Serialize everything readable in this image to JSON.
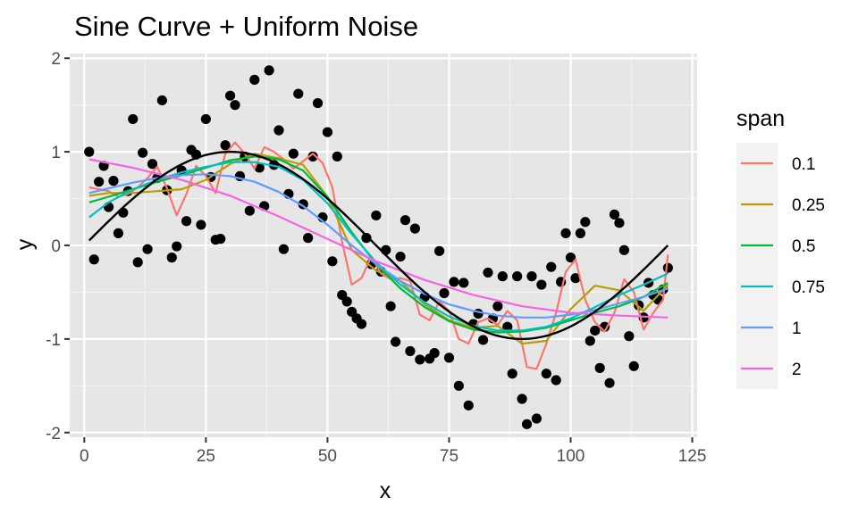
{
  "chart_data": {
    "type": "scatter",
    "title": "Sine Curve + Uniform Noise",
    "xlabel": "x",
    "ylabel": "y",
    "xlim": [
      -3,
      126
    ],
    "ylim": [
      -2.05,
      2.05
    ],
    "x_ticks": [
      0,
      25,
      50,
      75,
      100,
      125
    ],
    "y_ticks": [
      -2,
      -1,
      0,
      1,
      2
    ],
    "grid": true,
    "panel_background": "#e6e6e6",
    "legend": {
      "title": "span",
      "placement": "right",
      "entries": [
        "0.1",
        "0.25",
        "0.5",
        "0.75",
        "1",
        "2"
      ]
    },
    "points": {
      "color": "#000000",
      "x": [
        1,
        2,
        3,
        4,
        5,
        6,
        7,
        8,
        9,
        10,
        11,
        12,
        13,
        14,
        15,
        16,
        17,
        18,
        19,
        20,
        21,
        22,
        23,
        24,
        25,
        26,
        27,
        28,
        29,
        30,
        31,
        32,
        33,
        34,
        35,
        36,
        37,
        38,
        39,
        40,
        41,
        42,
        43,
        44,
        45,
        46,
        47,
        48,
        49,
        50,
        51,
        52,
        53,
        54,
        55,
        56,
        57,
        58,
        59,
        60,
        61,
        62,
        63,
        64,
        65,
        66,
        67,
        68,
        69,
        70,
        71,
        72,
        73,
        74,
        75,
        76,
        77,
        78,
        79,
        80,
        81,
        82,
        83,
        84,
        85,
        86,
        87,
        88,
        89,
        90,
        91,
        92,
        93,
        94,
        95,
        96,
        97,
        98,
        99,
        100,
        101,
        102,
        103,
        104,
        105,
        106,
        107,
        108,
        109,
        110,
        111,
        112,
        113,
        114,
        115,
        116,
        117,
        118,
        119,
        120
      ],
      "y": [
        1.0,
        -0.15,
        0.68,
        0.85,
        0.41,
        0.69,
        0.13,
        0.35,
        0.58,
        1.35,
        -0.18,
        0.99,
        -0.04,
        0.87,
        0.72,
        1.55,
        0.59,
        -0.13,
        -0.01,
        0.8,
        0.26,
        1.02,
        0.97,
        0.22,
        1.35,
        0.73,
        0.06,
        0.07,
        1.07,
        1.6,
        1.5,
        0.74,
        0.95,
        0.37,
        1.77,
        0.83,
        0.42,
        1.87,
        0.86,
        1.23,
        -0.04,
        0.55,
        0.98,
        1.62,
        0.44,
        0.08,
        0.95,
        1.52,
        0.3,
        1.21,
        -0.17,
        0.95,
        -0.53,
        -0.6,
        -0.71,
        -0.78,
        -0.84,
        0.08,
        -0.2,
        0.32,
        -0.28,
        -0.05,
        -0.65,
        -1.03,
        -0.12,
        0.27,
        -1.13,
        0.18,
        -1.22,
        -0.55,
        -1.21,
        -1.15,
        -0.06,
        -0.51,
        -1.2,
        -0.39,
        -1.5,
        -0.4,
        -1.71,
        -0.84,
        -0.73,
        -1.01,
        -0.29,
        -0.78,
        -0.65,
        -0.33,
        -0.87,
        -1.37,
        -0.33,
        -1.64,
        -1.91,
        -0.33,
        -1.85,
        -0.42,
        -1.37,
        -0.23,
        -1.44,
        -0.39,
        0.13,
        -0.13,
        -0.35,
        0.13,
        0.25,
        -1.02,
        -0.91,
        -1.31,
        -0.87,
        -1.47,
        0.33,
        0.24,
        -0.05,
        -0.97,
        -1.29,
        -0.64,
        -0.77,
        -0.4,
        -0.53,
        -0.58,
        -0.47,
        -0.24
      ]
    },
    "series": [
      {
        "name": "0.1",
        "color": "#F8766D",
        "x": [
          1,
          3,
          5,
          7,
          9,
          11,
          13,
          15,
          17,
          19,
          21,
          23,
          25,
          27,
          29,
          31,
          33,
          35,
          37,
          39,
          41,
          43,
          45,
          47,
          49,
          51,
          53,
          55,
          57,
          59,
          61,
          63,
          65,
          67,
          69,
          71,
          73,
          75,
          77,
          79,
          81,
          83,
          85,
          87,
          89,
          91,
          93,
          95,
          97,
          99,
          101,
          103,
          105,
          107,
          109,
          111,
          113,
          115,
          117,
          119,
          120
        ],
        "y": [
          0.62,
          0.6,
          0.58,
          0.52,
          0.55,
          0.62,
          0.72,
          0.84,
          0.61,
          0.32,
          0.55,
          0.85,
          0.74,
          0.56,
          0.98,
          1.1,
          0.98,
          0.82,
          1.05,
          1.0,
          0.92,
          0.82,
          0.9,
          0.98,
          0.88,
          0.62,
          0.04,
          -0.42,
          -0.35,
          -0.12,
          -0.3,
          -0.36,
          -0.35,
          -0.38,
          -0.74,
          -0.8,
          -0.6,
          -0.7,
          -1.0,
          -1.05,
          -0.82,
          -0.78,
          -0.85,
          -0.7,
          -0.8,
          -1.3,
          -1.32,
          -1.05,
          -0.72,
          -0.28,
          -0.15,
          -0.58,
          -0.82,
          -0.92,
          -0.72,
          -0.36,
          -0.5,
          -0.9,
          -0.72,
          -0.58,
          -0.1
        ]
      },
      {
        "name": "0.25",
        "color": "#B79F00",
        "x": [
          1,
          5,
          10,
          15,
          20,
          25,
          30,
          35,
          40,
          45,
          50,
          55,
          60,
          65,
          70,
          75,
          80,
          85,
          90,
          95,
          100,
          105,
          110,
          115,
          120
        ],
        "y": [
          0.53,
          0.56,
          0.56,
          0.58,
          0.6,
          0.7,
          0.87,
          0.98,
          0.93,
          0.86,
          0.52,
          -0.05,
          -0.27,
          -0.38,
          -0.63,
          -0.8,
          -0.88,
          -0.86,
          -1.05,
          -1.02,
          -0.68,
          -0.43,
          -0.48,
          -0.7,
          -0.42
        ]
      },
      {
        "name": "0.5",
        "color": "#00BA38",
        "x": [
          1,
          5,
          10,
          15,
          20,
          25,
          30,
          35,
          40,
          45,
          50,
          55,
          60,
          65,
          70,
          75,
          80,
          85,
          90,
          95,
          100,
          105,
          110,
          115,
          120
        ],
        "y": [
          0.46,
          0.52,
          0.6,
          0.68,
          0.75,
          0.83,
          0.91,
          0.95,
          0.92,
          0.8,
          0.52,
          0.14,
          -0.2,
          -0.46,
          -0.66,
          -0.81,
          -0.9,
          -0.93,
          -0.92,
          -0.88,
          -0.8,
          -0.72,
          -0.65,
          -0.55,
          -0.4
        ]
      },
      {
        "name": "0.75",
        "color": "#00BFC4",
        "x": [
          1,
          5,
          10,
          15,
          20,
          25,
          30,
          35,
          40,
          45,
          50,
          55,
          60,
          65,
          70,
          75,
          80,
          85,
          90,
          95,
          100,
          105,
          110,
          115,
          120
        ],
        "y": [
          0.3,
          0.46,
          0.6,
          0.7,
          0.78,
          0.84,
          0.89,
          0.89,
          0.84,
          0.7,
          0.45,
          0.12,
          -0.18,
          -0.42,
          -0.61,
          -0.76,
          -0.86,
          -0.91,
          -0.91,
          -0.87,
          -0.78,
          -0.66,
          -0.53,
          -0.42,
          -0.3
        ]
      },
      {
        "name": "1",
        "color": "#619CFF",
        "x": [
          1,
          5,
          10,
          15,
          20,
          25,
          30,
          35,
          40,
          45,
          50,
          55,
          60,
          65,
          70,
          75,
          80,
          85,
          90,
          95,
          100,
          105,
          110,
          115,
          120
        ],
        "y": [
          0.56,
          0.61,
          0.67,
          0.72,
          0.75,
          0.76,
          0.74,
          0.68,
          0.57,
          0.42,
          0.22,
          0.0,
          -0.2,
          -0.38,
          -0.52,
          -0.63,
          -0.7,
          -0.75,
          -0.77,
          -0.77,
          -0.74,
          -0.69,
          -0.62,
          -0.55,
          -0.46
        ]
      },
      {
        "name": "2",
        "color": "#F564E3",
        "x": [
          1,
          10,
          20,
          30,
          40,
          50,
          60,
          70,
          80,
          90,
          100,
          110,
          120
        ],
        "y": [
          0.92,
          0.83,
          0.7,
          0.53,
          0.31,
          0.07,
          -0.17,
          -0.37,
          -0.53,
          -0.65,
          -0.72,
          -0.75,
          -0.77
        ]
      }
    ],
    "reference_curve": {
      "color": "#000000",
      "function": "sin(2*pi*x/120)",
      "x_range": [
        1,
        120
      ]
    }
  }
}
